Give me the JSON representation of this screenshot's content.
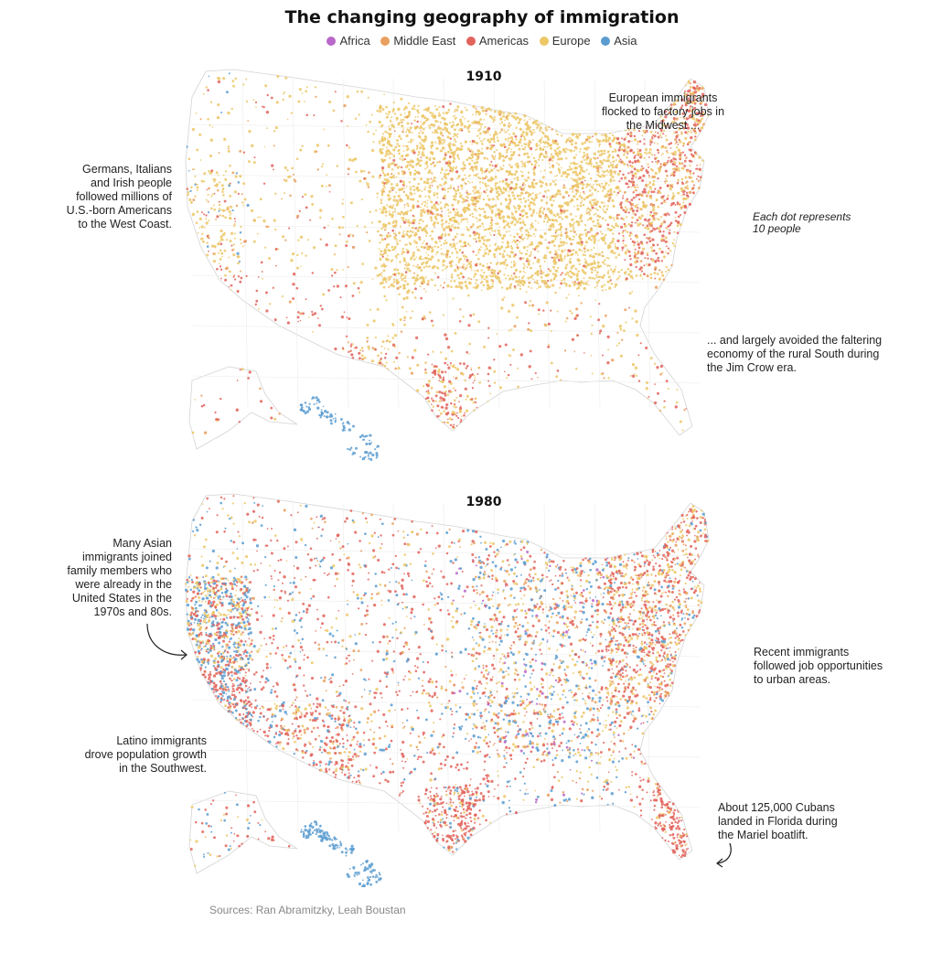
{
  "title": "The changing geography of immigration",
  "legend": [
    {
      "label": "Africa",
      "color": "#b967c9"
    },
    {
      "label": "Middle East",
      "color": "#e9a05f"
    },
    {
      "label": "Americas",
      "color": "#e2635b"
    },
    {
      "label": "Europe",
      "color": "#ecc766"
    },
    {
      "label": "Asia",
      "color": "#5a9cd0"
    }
  ],
  "panels": [
    {
      "year": "1910",
      "annotations": {
        "west_coast": "Germans, Italians\nand Irish people\nfollowed millions of\nU.S.-born Americans\nto the West Coast.",
        "midwest": "European immigrants\nflocked to factory jobs in\nthe Midwest ...",
        "dot_key": "Each dot represents\n10 people",
        "south": "... and largely avoided the faltering\neconomy of the rural South during\nthe Jim Crow era."
      }
    },
    {
      "year": "1980",
      "annotations": {
        "asian": "Many Asian\nimmigrants joined\nfamily members who\nwere already in the\nUnited States in the\n1970s and 80s.",
        "urban": "Recent immigrants\nfollowed job opportunities\nto urban areas.",
        "latino": "Latino immigrants\ndrove population growth\nin the Southwest.",
        "cuban": "About 125,000 Cubans\nlanded in Florida during\nthe Mariel boatlift."
      }
    }
  ],
  "source": "Sources: Ran Abramitzky, Leah Boustan"
}
